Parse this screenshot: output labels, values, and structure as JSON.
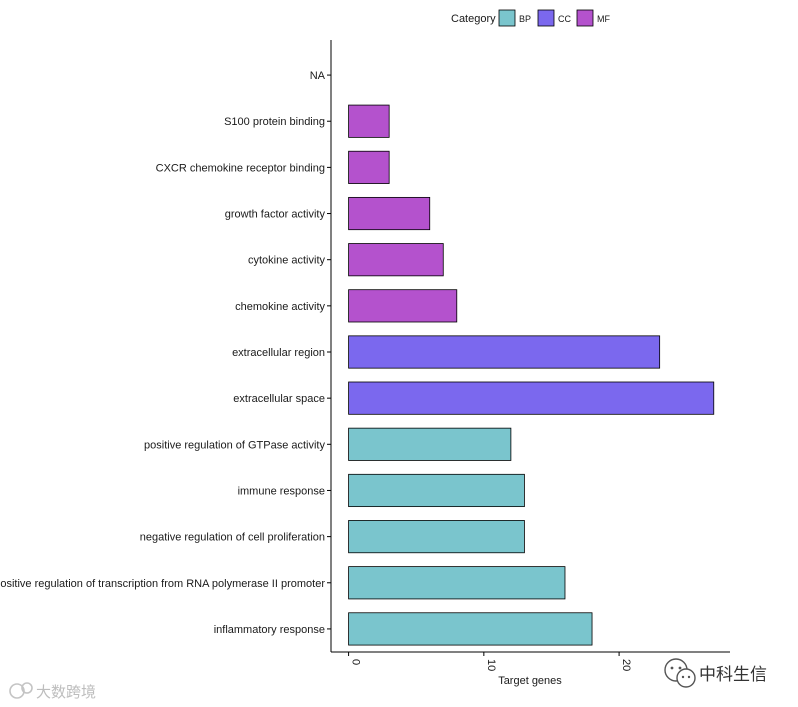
{
  "chart_data": {
    "type": "bar",
    "orientation": "horizontal",
    "xlabel": "Target genes",
    "ylabel": "",
    "xlim": [
      -1.3,
      28.2
    ],
    "x_ticks": [
      0,
      10,
      20
    ],
    "x_tick_labels": [
      "0",
      "10",
      "20"
    ],
    "grid": false,
    "legend": {
      "title": "Category",
      "position": "top",
      "entries": [
        {
          "label": "BP",
          "color": "#7AC5CD"
        },
        {
          "label": "CC",
          "color": "#7B68EE"
        },
        {
          "label": "MF",
          "color": "#B452CD"
        }
      ]
    },
    "bars": [
      {
        "term": "NA",
        "category": "",
        "value": null
      },
      {
        "term": "S100 protein binding",
        "category": "MF",
        "value": 3
      },
      {
        "term": "CXCR chemokine receptor binding",
        "category": "MF",
        "value": 3
      },
      {
        "term": "growth factor activity",
        "category": "MF",
        "value": 6
      },
      {
        "term": "cytokine activity",
        "category": "MF",
        "value": 7
      },
      {
        "term": "chemokine activity",
        "category": "MF",
        "value": 8
      },
      {
        "term": "extracellular region",
        "category": "CC",
        "value": 23
      },
      {
        "term": "extracellular space",
        "category": "CC",
        "value": 27
      },
      {
        "term": "positive regulation of GTPase activity",
        "category": "BP",
        "value": 12
      },
      {
        "term": "immune response",
        "category": "BP",
        "value": 13
      },
      {
        "term": "negative regulation of cell proliferation",
        "category": "BP",
        "value": 13
      },
      {
        "term": "positive regulation of transcription from RNA polymerase II promoter",
        "category": "BP",
        "value": 16
      },
      {
        "term": "inflammatory response",
        "category": "BP",
        "value": 18
      }
    ]
  },
  "watermarks": {
    "left": "大数跨境",
    "right": "中科生信"
  },
  "icons": {
    "left": "camera-logo-icon",
    "right": "wechat-logo-icon"
  }
}
